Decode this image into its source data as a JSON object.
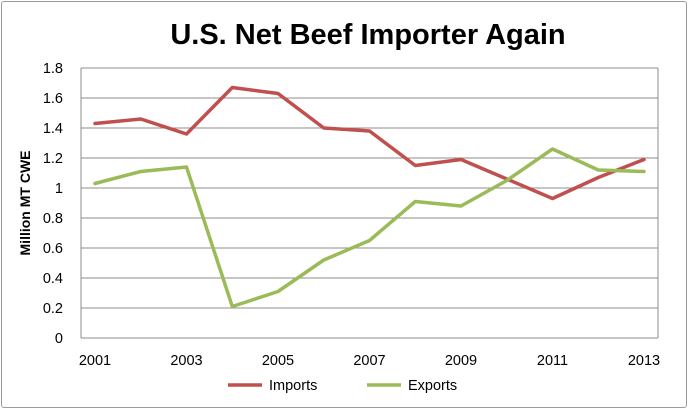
{
  "chart_data": {
    "type": "line",
    "title": "U.S. Net Beef Importer Again",
    "xlabel": "",
    "ylabel": "Million MT CWE",
    "x": [
      2001,
      2002,
      2003,
      2004,
      2005,
      2006,
      2007,
      2008,
      2009,
      2010,
      2011,
      2012,
      2013
    ],
    "x_tick_labels": [
      "2001",
      "2003",
      "2005",
      "2007",
      "2009",
      "2011",
      "2013"
    ],
    "y_tick_labels": [
      "0",
      "0.2",
      "0.4",
      "0.6",
      "0.8",
      "1",
      "1.2",
      "1.4",
      "1.6",
      "1.8"
    ],
    "ylim": [
      0,
      1.8
    ],
    "grid": true,
    "legend_position": "bottom",
    "series": [
      {
        "name": "Imports",
        "color": "#c0504d",
        "values": [
          1.43,
          1.46,
          1.36,
          1.67,
          1.63,
          1.4,
          1.38,
          1.15,
          1.19,
          1.06,
          0.93,
          1.07,
          1.19
        ]
      },
      {
        "name": "Exports",
        "color": "#9bbb59",
        "values": [
          1.03,
          1.11,
          1.14,
          0.21,
          0.31,
          0.52,
          0.65,
          0.91,
          0.88,
          1.05,
          1.26,
          1.12,
          1.11
        ]
      }
    ]
  }
}
